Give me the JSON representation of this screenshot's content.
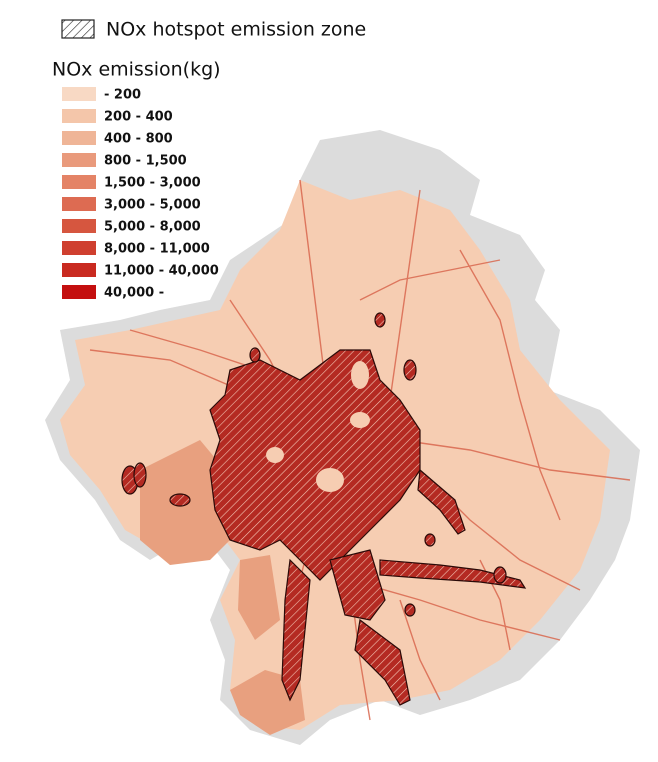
{
  "legend": {
    "hotspot_label": "NOx hotspot emission zone",
    "title": "NOx emission(kg)",
    "classes": [
      {
        "label": "- 200",
        "color": "#f8d9c4"
      },
      {
        "label": "200 - 400",
        "color": "#f4c6aa"
      },
      {
        "label": "400 - 800",
        "color": "#efb597"
      },
      {
        "label": "800 - 1,500",
        "color": "#e99a7c"
      },
      {
        "label": "1,500 - 3,000",
        "color": "#e48366"
      },
      {
        "label": "3,000 - 5,000",
        "color": "#dd6b52"
      },
      {
        "label": "5,000 - 8,000",
        "color": "#d6563f"
      },
      {
        "label": "8,000 - 11,000",
        "color": "#cf3f2f"
      },
      {
        "label": "11,000 - 40,000",
        "color": "#c92a20"
      },
      {
        "label": "40,000 -",
        "color": "#c40f0f"
      }
    ]
  }
}
